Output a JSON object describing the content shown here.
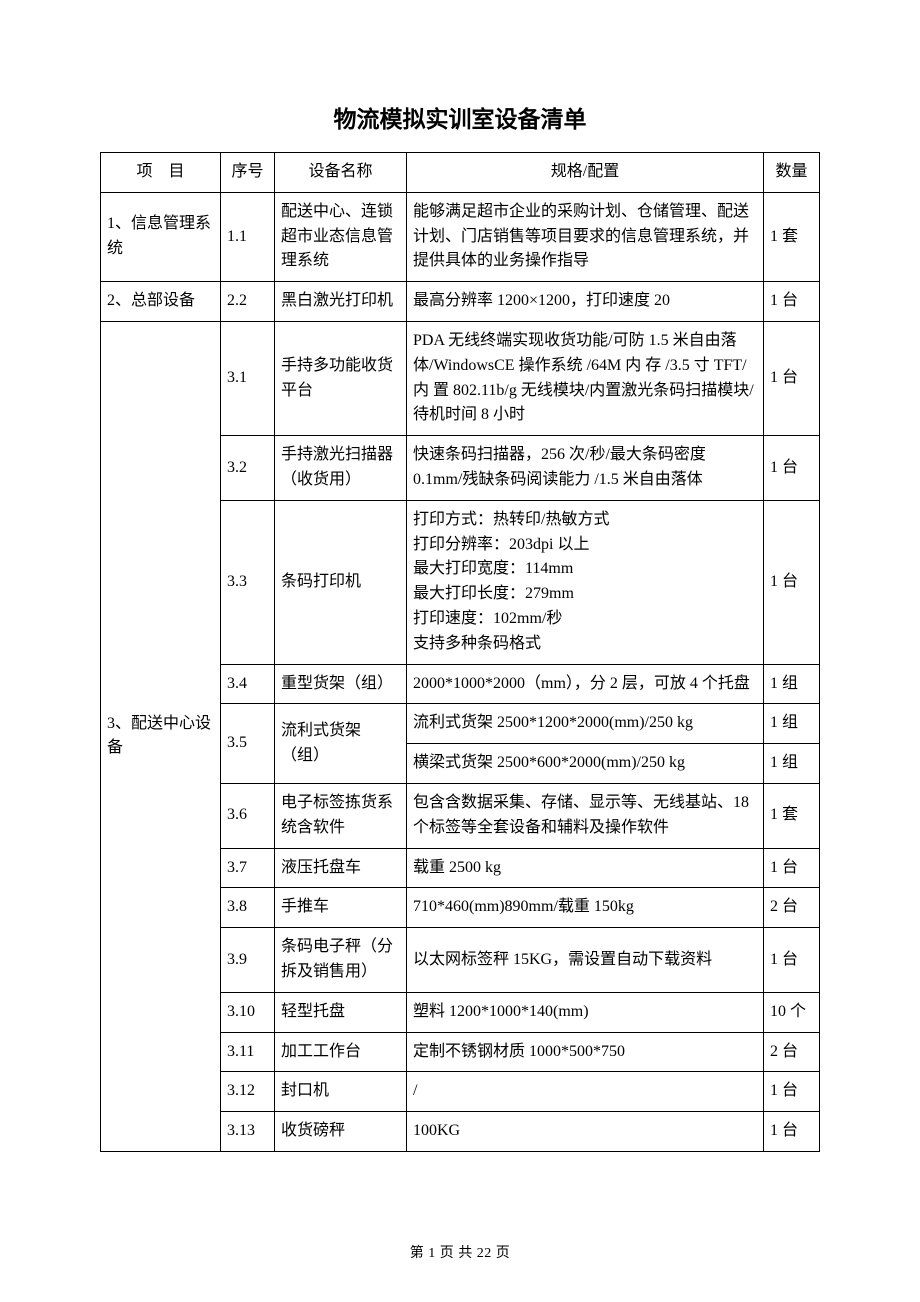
{
  "title": "物流模拟实训室设备清单",
  "columns": {
    "project": "项　目",
    "index": "序号",
    "name": "设备名称",
    "spec": "规格/配置",
    "qty": "数量"
  },
  "sections": [
    {
      "project": "1、信息管理系统",
      "rows": [
        {
          "idx": "1.1",
          "name": "配送中心、连锁超市业态信息管理系统",
          "specs": [
            "能够满足超市企业的采购计划、仓储管理、配送计划、门店销售等项目要求的信息管理系统，并提供具体的业务操作指导"
          ],
          "qty": [
            "1 套"
          ]
        }
      ]
    },
    {
      "project": "2、总部设备",
      "rows": [
        {
          "idx": "2.2",
          "name": "黑白激光打印机",
          "specs": [
            "最高分辨率 1200×1200，打印速度 20"
          ],
          "qty": [
            "1 台"
          ]
        }
      ]
    },
    {
      "project": "3、配送中心设备",
      "rows": [
        {
          "idx": "3.1",
          "name": "手持多功能收货平台",
          "specs": [
            "PDA 无线终端实现收货功能/可防 1.5 米自由落体/WindowsCE 操作系统 /64M 内 存 /3.5 寸 TFT/ 内 置 802.11b/g 无线模块/内置激光条码扫描模块/待机时间 8 小时"
          ],
          "qty": [
            "1 台"
          ]
        },
        {
          "idx": "3.2",
          "name": "手持激光扫描器（收货用）",
          "specs": [
            "快速条码扫描器，256 次/秒/最大条码密度 0.1mm/残缺条码阅读能力 /1.5 米自由落体"
          ],
          "qty": [
            "1 台"
          ]
        },
        {
          "idx": "3.3",
          "name": "条码打印机",
          "specs": [
            "打印方式：热转印/热敏方式\n打印分辨率：203dpi 以上\n最大打印宽度：114mm\n最大打印长度：279mm\n打印速度：102mm/秒\n支持多种条码格式"
          ],
          "qty": [
            "1 台"
          ]
        },
        {
          "idx": "3.4",
          "name": "重型货架（组）",
          "specs": [
            "2000*1000*2000（mm），分 2 层，可放 4 个托盘"
          ],
          "qty": [
            "1 组"
          ]
        },
        {
          "idx": "3.5",
          "name": "流利式货架（组）",
          "specs": [
            "流利式货架 2500*1200*2000(mm)/250 kg",
            "横梁式货架 2500*600*2000(mm)/250 kg"
          ],
          "qty": [
            "1 组",
            "1 组"
          ]
        },
        {
          "idx": "3.6",
          "name": "电子标签拣货系统含软件",
          "specs": [
            "包含含数据采集、存储、显示等、无线基站、18 个标签等全套设备和辅料及操作软件"
          ],
          "qty": [
            "1 套"
          ]
        },
        {
          "idx": "3.7",
          "name": "液压托盘车",
          "specs": [
            "载重 2500 kg"
          ],
          "qty": [
            "1 台"
          ]
        },
        {
          "idx": "3.8",
          "name": "手推车",
          "specs": [
            "710*460(mm)890mm/载重 150kg"
          ],
          "qty": [
            "2 台"
          ]
        },
        {
          "idx": "3.9",
          "name": "条码电子秤（分拆及销售用）",
          "specs": [
            "以太网标签秤 15KG，需设置自动下载资料"
          ],
          "qty": [
            "1 台"
          ]
        },
        {
          "idx": "3.10",
          "name": "轻型托盘",
          "specs": [
            "塑料 1200*1000*140(mm)"
          ],
          "qty": [
            "10 个"
          ]
        },
        {
          "idx": "3.11",
          "name": "加工工作台",
          "specs": [
            "定制不锈钢材质 1000*500*750"
          ],
          "qty": [
            "2 台"
          ]
        },
        {
          "idx": "3.12",
          "name": "封口机",
          "specs": [
            "/"
          ],
          "qty": [
            "1 台"
          ]
        },
        {
          "idx": "3.13",
          "name": "收货磅秤",
          "specs": [
            "100KG"
          ],
          "qty": [
            "1 台"
          ]
        }
      ]
    }
  ],
  "footer": "第 1 页 共 22 页",
  "style": {
    "text_color": "#000000",
    "bg_color": "#ffffff",
    "border_color": "#000000",
    "title_fontsize": 23,
    "body_fontsize": 16,
    "footer_fontsize": 14,
    "col_widths": {
      "project": 120,
      "index": 54,
      "name": 132,
      "qty": 56
    }
  }
}
